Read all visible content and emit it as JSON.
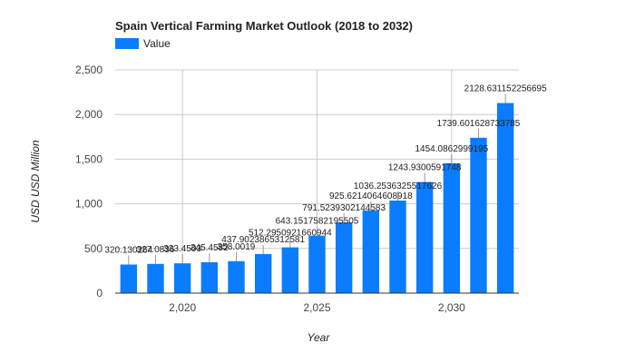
{
  "chart_data": {
    "type": "bar",
    "title": "Spain Vertical Farming Market Outlook (2018 to 2032)",
    "xlabel": "Year",
    "ylabel": "USD USD Million",
    "legend": {
      "position": "top-left"
    },
    "series": [
      {
        "name": "Value",
        "color": "#0a7cff",
        "values": [
          {
            "x": 2018,
            "y": 320.1302642
          },
          {
            "x": 2019,
            "y": 327.0836
          },
          {
            "x": 2020,
            "y": 333.4503
          },
          {
            "x": 2021,
            "y": 345.4582
          },
          {
            "x": 2022,
            "y": 358.0019
          },
          {
            "x": 2023,
            "y": 437.9023865312581
          },
          {
            "x": 2024,
            "y": 512.2950921660944
          },
          {
            "x": 2025,
            "y": 643.1517582195505
          },
          {
            "x": 2026,
            "y": 791.5239302144583
          },
          {
            "x": 2027,
            "y": 925.6214064608918
          },
          {
            "x": 2028,
            "y": 1036.2536325517626
          },
          {
            "x": 2029,
            "y": 1243.9300591748
          },
          {
            "x": 2030,
            "y": 1454.0862999195
          },
          {
            "x": 2031,
            "y": 1739.601628733785
          },
          {
            "x": 2032,
            "y": 2128.631152256695
          }
        ]
      }
    ],
    "data_labels": [
      "320.130264",
      "327.0836",
      "333.4503",
      "345.4582",
      "358.0019",
      "437.9023865312581",
      "512.2950921660944",
      "643.1517582195505",
      "791.5239302144583",
      "925.6214064608918",
      "1036.2536325517626",
      "1243.9300591748",
      "1454.0862999195",
      "1739.601628733785",
      "2128.631152256695"
    ],
    "y_ticks": [
      {
        "value": 0,
        "label": "0"
      },
      {
        "value": 500,
        "label": "500"
      },
      {
        "value": 1000,
        "label": "1,000"
      },
      {
        "value": 1500,
        "label": "1,500"
      },
      {
        "value": 2000,
        "label": "2,000"
      },
      {
        "value": 2500,
        "label": "2,500"
      }
    ],
    "x_ticks": [
      {
        "value": 2020,
        "label": "2,020"
      },
      {
        "value": 2025,
        "label": "2,025"
      },
      {
        "value": 2030,
        "label": "2,030"
      }
    ],
    "xlim": [
      2017.5,
      2032.5
    ],
    "ylim": [
      0,
      2500
    ],
    "grid": true
  }
}
